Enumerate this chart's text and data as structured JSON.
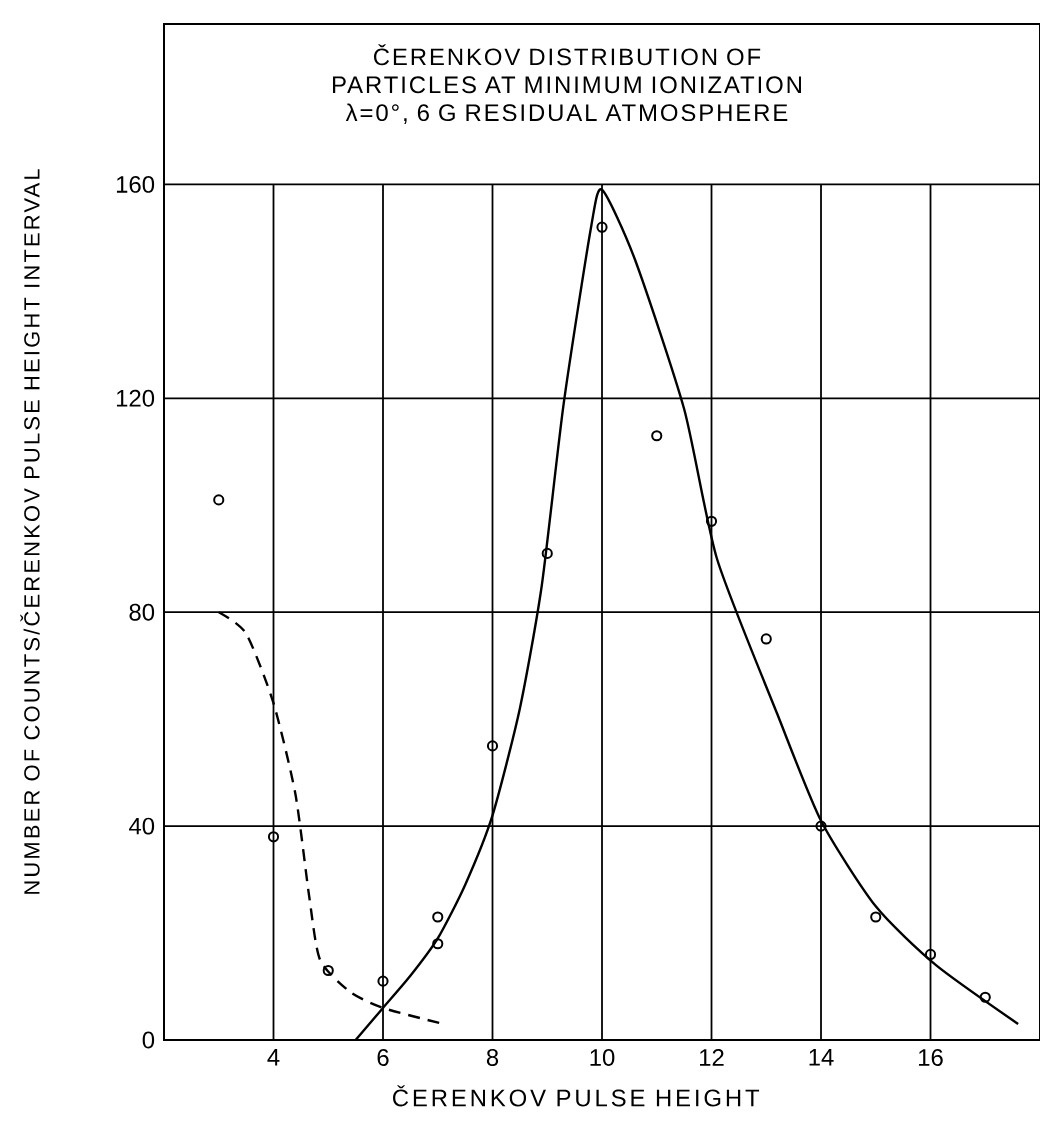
{
  "chart_data": {
    "type": "scatter",
    "title": "ČERENKOV DISTRIBUTION OF PARTICLES AT MINIMUM IONIZATION",
    "subtitle": "λ=0°, 6 G RESIDUAL ATMOSPHERE",
    "xlabel": "ČERENKOV PULSE HEIGHT",
    "ylabel": "NUMBER OF COUNTS/ČERENKOV PULSE HEIGHT INTERVAL",
    "xlim": [
      2,
      18
    ],
    "ylim": [
      0,
      190
    ],
    "xticks": [
      4,
      6,
      8,
      10,
      12,
      14,
      16
    ],
    "yticks": [
      0,
      40,
      80,
      120,
      160
    ],
    "grid": true,
    "series": [
      {
        "marker": "circle",
        "color": "#000000",
        "x": [
          3,
          4,
          5,
          6,
          7,
          7,
          8,
          9,
          10,
          11,
          12,
          13,
          14,
          15,
          16,
          17
        ],
        "values": [
          101,
          38,
          13,
          11,
          23,
          18,
          55,
          91,
          152,
          113,
          97,
          75,
          40,
          23,
          16,
          8
        ]
      },
      {
        "type": "line",
        "marker": "none",
        "line_style": "solid",
        "color": "#000000",
        "x": [
          5.5,
          6,
          6.5,
          7,
          7.5,
          8,
          8.5,
          8.9,
          9.3,
          9.8,
          10,
          10.6,
          11.5,
          12.1,
          13.2,
          14,
          15,
          16.1,
          17.6
        ],
        "values": [
          0,
          6,
          12,
          19,
          29,
          42,
          62,
          85,
          119,
          152,
          159,
          146,
          118,
          90,
          61,
          41,
          25,
          14,
          3
        ]
      },
      {
        "type": "line",
        "marker": "none",
        "line_style": "dashed",
        "color": "#000000",
        "x": [
          3,
          3.5,
          4,
          4.4,
          4.65,
          4.85,
          5.4,
          6,
          7.1
        ],
        "values": [
          80,
          76,
          63,
          46,
          27,
          15,
          9,
          6,
          3
        ]
      }
    ]
  }
}
